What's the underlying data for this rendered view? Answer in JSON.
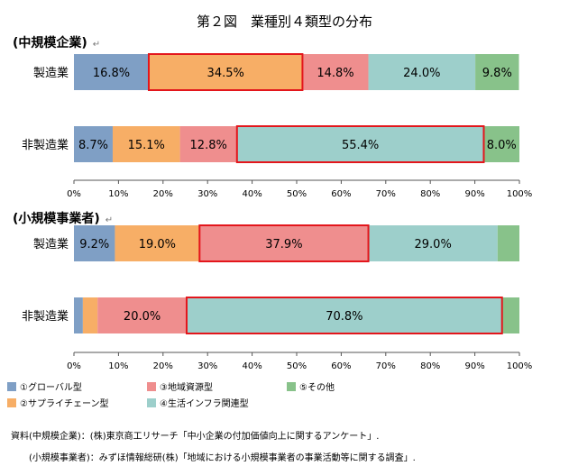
{
  "title": "第２図　業種別４類型の分布",
  "return_mark": "↵",
  "legend_items": [
    {
      "label": "①グローバル型",
      "color": "#7f9fc5"
    },
    {
      "label": "②サプライチェーン型",
      "color": "#f7ae66"
    },
    {
      "label": "③地域資源型",
      "color": "#ef8e8e"
    },
    {
      "label": "④生活インフラ関連型",
      "color": "#9dcfcb"
    },
    {
      "label": "⑤その他",
      "color": "#88c28a"
    }
  ],
  "source_lines": [
    "資料(中規模企業)：(株)東京商工リサーチ「中小企業の付加価値向上に関するアンケート」.",
    "(小規模事業者)：みずほ情報総研(株)「地域における小規模事業者の事業活動等に関する調査」."
  ],
  "highlight_color": "#e3161c",
  "chart_data": [
    {
      "type": "bar",
      "orientation": "horizontal",
      "stacked": true,
      "title": "(中規模企業)",
      "categories": [
        "製造業",
        "非製造業"
      ],
      "series": [
        {
          "name": "①グローバル型",
          "values": [
            16.8,
            8.7
          ]
        },
        {
          "name": "②サプライチェーン型",
          "values": [
            34.5,
            15.1
          ]
        },
        {
          "name": "③地域資源型",
          "values": [
            14.8,
            12.8
          ]
        },
        {
          "name": "④生活インフラ関連型",
          "values": [
            24.0,
            55.4
          ]
        },
        {
          "name": "⑤その他",
          "values": [
            9.8,
            8.0
          ]
        }
      ],
      "value_labels": [
        [
          "16.8%",
          "34.5%",
          "14.8%",
          "24.0%",
          "9.8%"
        ],
        [
          "8.7%",
          "15.1%",
          "12.8%",
          "55.4%",
          "8.0%"
        ]
      ],
      "highlighted": [
        1,
        3
      ],
      "xlim": [
        0,
        100
      ],
      "xticks": [
        "0%",
        "10%",
        "20%",
        "30%",
        "40%",
        "50%",
        "60%",
        "70%",
        "80%",
        "90%",
        "100%"
      ]
    },
    {
      "type": "bar",
      "orientation": "horizontal",
      "stacked": true,
      "title": "(小規模事業者)",
      "categories": [
        "製造業",
        "非製造業"
      ],
      "series": [
        {
          "name": "①グローバル型",
          "values": [
            9.2,
            2.0
          ]
        },
        {
          "name": "②サプライチェーン型",
          "values": [
            19.0,
            3.3
          ]
        },
        {
          "name": "③地域資源型",
          "values": [
            37.9,
            20.0
          ]
        },
        {
          "name": "④生活インフラ関連型",
          "values": [
            29.0,
            70.8
          ]
        },
        {
          "name": "⑤その他",
          "values": [
            4.9,
            3.9
          ]
        }
      ],
      "value_labels": [
        [
          "9.2%",
          "19.0%",
          "37.9%",
          "29.0%",
          ""
        ],
        [
          "",
          "",
          "20.0%",
          "70.8%",
          ""
        ]
      ],
      "highlighted": [
        2,
        3
      ],
      "xlim": [
        0,
        100
      ],
      "xticks": [
        "0%",
        "10%",
        "20%",
        "30%",
        "40%",
        "50%",
        "60%",
        "70%",
        "80%",
        "90%",
        "100%"
      ]
    }
  ]
}
